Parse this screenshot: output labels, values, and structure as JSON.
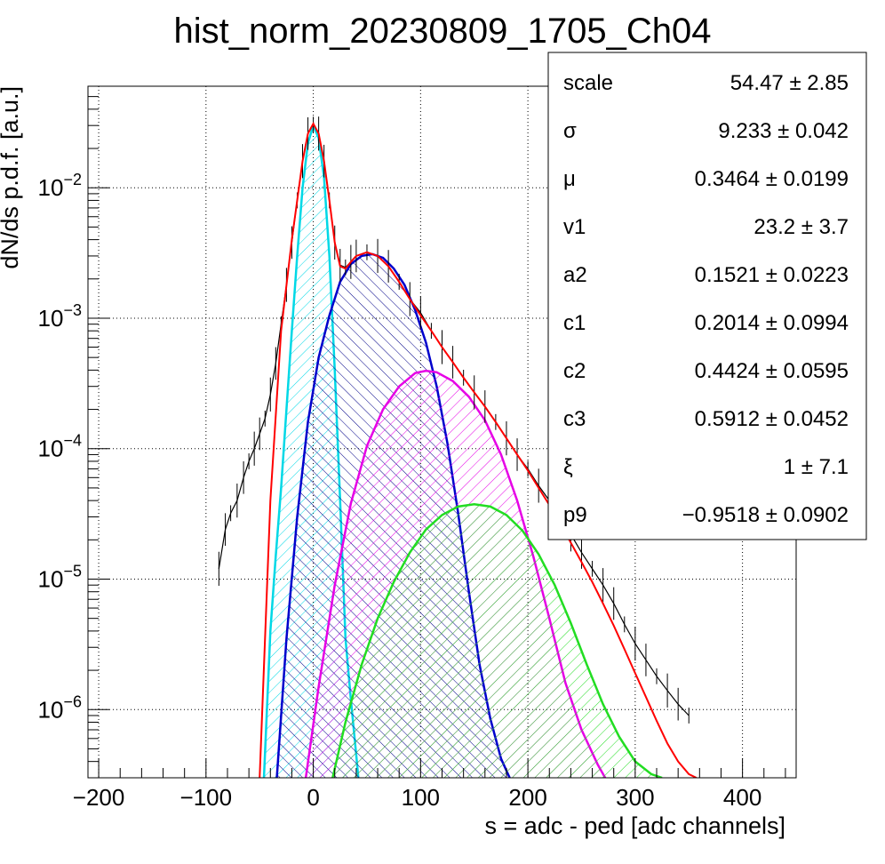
{
  "chart_data": {
    "type": "line",
    "title": "hist_norm_20230809_1705_Ch04",
    "xlabel": "s = adc - ped [adc channels]",
    "ylabel": "dN/ds p.d.f. [a.u.]",
    "xlim": [
      -210,
      450
    ],
    "ylim": [
      3e-07,
      0.06
    ],
    "y_scale": "log",
    "grid": true,
    "x_ticks": [
      {
        "value": -200,
        "label": "−200"
      },
      {
        "value": -100,
        "label": "−100"
      },
      {
        "value": 0,
        "label": "0"
      },
      {
        "value": 100,
        "label": "100"
      },
      {
        "value": 200,
        "label": "200"
      },
      {
        "value": 300,
        "label": "300"
      },
      {
        "value": 400,
        "label": "400"
      }
    ],
    "y_ticks": [
      {
        "value": 1e-06,
        "base": "10",
        "exp": "−6"
      },
      {
        "value": 1e-05,
        "base": "10",
        "exp": "−5"
      },
      {
        "value": 0.0001,
        "base": "10",
        "exp": "−4"
      },
      {
        "value": 0.001,
        "base": "10",
        "exp": "−3"
      },
      {
        "value": 0.01,
        "base": "10",
        "exp": "−2"
      }
    ],
    "series": [
      {
        "color": "#000000",
        "style": "histogram",
        "x": [
          -88,
          -82,
          -77,
          -71,
          -65,
          -60,
          -55,
          -50,
          -45,
          -40,
          -35,
          -30,
          -25,
          -20,
          -15,
          -10,
          -5,
          0,
          5,
          10,
          15,
          20,
          25,
          30,
          35,
          40,
          50,
          60,
          70,
          80,
          90,
          100,
          110,
          120,
          130,
          140,
          150,
          160,
          170,
          180,
          190,
          200,
          210,
          220,
          230,
          240,
          250,
          260,
          270,
          280,
          290,
          300,
          310,
          320,
          330,
          340,
          350
        ],
        "y": [
          1.2e-05,
          2.4e-05,
          3.2e-05,
          4e-05,
          6e-05,
          8e-05,
          0.0001,
          0.00013,
          0.00017,
          0.00026,
          0.00045,
          0.0009,
          0.0018,
          0.0038,
          0.008,
          0.016,
          0.026,
          0.0305,
          0.026,
          0.016,
          0.008,
          0.0038,
          0.00255,
          0.00245,
          0.0027,
          0.003,
          0.0032,
          0.003,
          0.0025,
          0.0019,
          0.0014,
          0.0011,
          0.0008,
          0.0006,
          0.00046,
          0.00035,
          0.00027,
          0.00021,
          0.00016,
          0.00012,
          9e-05,
          7e-05,
          5.2e-05,
          4e-05,
          3e-05,
          2.2e-05,
          1.6e-05,
          1.2e-05,
          9e-06,
          6.5e-06,
          4.5e-06,
          3.2e-06,
          2.4e-06,
          1.8e-06,
          1.4e-06,
          1.1e-06,
          9e-07
        ]
      },
      {
        "color": "#ff0000",
        "style": "line",
        "x": [
          -50,
          -40,
          -30,
          -20,
          -10,
          -5,
          0,
          5,
          10,
          15,
          20,
          25,
          30,
          35,
          40,
          50,
          60,
          70,
          80,
          90,
          100,
          110,
          120,
          130,
          140,
          150,
          160,
          170,
          180,
          190,
          200,
          210,
          220,
          230,
          240,
          250,
          260,
          270,
          280,
          290,
          300,
          310,
          320,
          330,
          340,
          350,
          357
        ],
        "y": [
          3e-07,
          4e-05,
          0.0008,
          0.004,
          0.016,
          0.026,
          0.031,
          0.026,
          0.016,
          0.008,
          0.0038,
          0.0025,
          0.0024,
          0.0027,
          0.003,
          0.0032,
          0.003,
          0.0025,
          0.0019,
          0.0014,
          0.00105,
          0.0008,
          0.0006,
          0.00046,
          0.00035,
          0.00027,
          0.00021,
          0.00016,
          0.00012,
          9e-05,
          6.8e-05,
          5e-05,
          3.7e-05,
          2.7e-05,
          1.9e-05,
          1.35e-05,
          9.5e-06,
          6.5e-06,
          4.4e-06,
          2.9e-06,
          1.9e-06,
          1.25e-06,
          8.2e-07,
          5.5e-07,
          4e-07,
          3.2e-07,
          3e-07
        ]
      },
      {
        "color": "#00d8e6",
        "style": "filled-hatched",
        "x": [
          -46,
          -40,
          -35,
          -30,
          -25,
          -20,
          -15,
          -10,
          -5,
          0,
          5,
          10,
          15,
          20,
          25,
          30,
          35,
          40,
          42
        ],
        "y": [
          3e-07,
          4e-06,
          1.5e-05,
          5e-05,
          0.0002,
          0.0008,
          0.003,
          0.01,
          0.022,
          0.03,
          0.024,
          0.012,
          0.003,
          0.0004,
          4e-05,
          3.5e-06,
          1.2e-06,
          4.5e-07,
          3e-07
        ]
      },
      {
        "color": "#0000cc",
        "style": "filled-hatched",
        "x": [
          -34,
          -25,
          -15,
          -5,
          5,
          15,
          25,
          35,
          45,
          55,
          65,
          75,
          85,
          95,
          105,
          115,
          125,
          135,
          145,
          155,
          165,
          175,
          183
        ],
        "y": [
          3e-07,
          3.5e-06,
          3e-05,
          0.00016,
          0.0005,
          0.00105,
          0.0019,
          0.0026,
          0.003,
          0.0031,
          0.0029,
          0.0024,
          0.0018,
          0.00115,
          0.00065,
          0.0003,
          0.00011,
          3.2e-05,
          8e-06,
          2.2e-06,
          8.5e-07,
          4.2e-07,
          3e-07
        ]
      },
      {
        "color": "#e600e6",
        "style": "filled-hatched",
        "x": [
          -7,
          5,
          20,
          35,
          50,
          65,
          80,
          95,
          105,
          115,
          130,
          145,
          160,
          175,
          190,
          205,
          220,
          235,
          250,
          265,
          272
        ],
        "y": [
          3e-07,
          1.5e-06,
          9e-06,
          3.8e-05,
          0.000105,
          0.0002,
          0.0003,
          0.00038,
          0.000395,
          0.000385,
          0.00033,
          0.00025,
          0.000165,
          9e-05,
          4e-05,
          1.5e-05,
          5e-06,
          1.6e-06,
          7e-07,
          3.8e-07,
          3e-07
        ]
      },
      {
        "color": "#22dd22",
        "style": "filled-hatched",
        "x": [
          18,
          30,
          45,
          60,
          75,
          90,
          105,
          120,
          135,
          150,
          165,
          180,
          195,
          210,
          225,
          240,
          255,
          270,
          285,
          300,
          315,
          325
        ],
        "y": [
          3e-07,
          8e-07,
          2.2e-06,
          5e-06,
          9.5e-06,
          1.6e-05,
          2.4e-05,
          3.1e-05,
          3.6e-05,
          3.75e-05,
          3.6e-05,
          3.1e-05,
          2.35e-05,
          1.55e-05,
          9e-06,
          4.6e-06,
          2.2e-06,
          1.1e-06,
          6.2e-07,
          4e-07,
          3.2e-07,
          3e-07
        ]
      }
    ]
  },
  "stats": [
    {
      "key": "scale",
      "value": "54.47 ± 2.85"
    },
    {
      "key": "σ",
      "value": "9.233 ± 0.042"
    },
    {
      "key": "μ",
      "value": "0.3464 ± 0.0199"
    },
    {
      "key": "v1",
      "value": "23.2 ± 3.7"
    },
    {
      "key": "a2",
      "value": "0.1521 ± 0.0223"
    },
    {
      "key": "c1",
      "value": "0.2014 ± 0.0994"
    },
    {
      "key": "c2",
      "value": "0.4424 ± 0.0595"
    },
    {
      "key": "c3",
      "value": "0.5912 ± 0.0452"
    },
    {
      "key": "ξ",
      "value": "1 ± 7.1"
    },
    {
      "key": "p9",
      "value": "−0.9518 ± 0.0902"
    }
  ]
}
